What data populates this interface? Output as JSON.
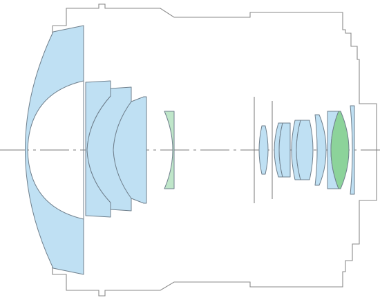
{
  "diagram": {
    "kind": "lens-construction-cross-section",
    "colors": {
      "element_fill": "#bfe0f3",
      "special_element_fill": "#bfe6c9",
      "ed_element_fill": "#8cd39a",
      "outline": "#6f7f8c",
      "barrel_outline": "#8a8a8a",
      "background": "#ffffff"
    },
    "element_count": 14,
    "aperture_stop_count": 2
  }
}
